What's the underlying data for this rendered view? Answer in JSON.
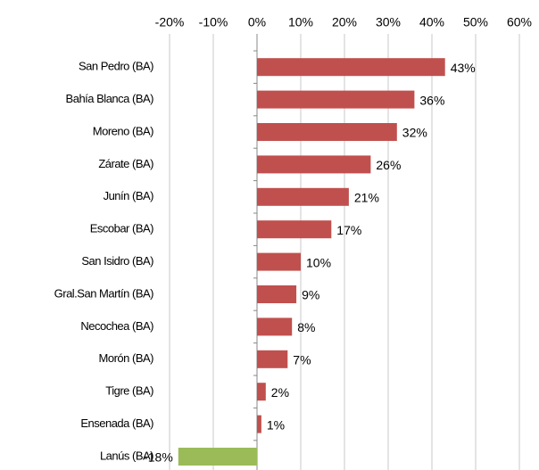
{
  "chart_data": {
    "type": "barh",
    "categories": [
      "San Pedro (BA)",
      "Bahía Blanca (BA)",
      "Moreno (BA)",
      "Zárate (BA)",
      "Junín (BA)",
      "Escobar (BA)",
      "San Isidro  (BA)",
      "Gral.San Martín (BA)",
      "Necochea (BA)",
      "Morón (BA)",
      "Tigre (BA)",
      "Ensenada (BA)",
      "Lanús (BA)"
    ],
    "values": [
      43,
      36,
      32,
      26,
      21,
      17,
      10,
      9,
      8,
      7,
      2,
      1,
      -18
    ],
    "value_labels": [
      "43%",
      "36%",
      "32%",
      "26%",
      "21%",
      "17%",
      "10%",
      "9%",
      "8%",
      "7%",
      "2%",
      "1%",
      "-18%"
    ],
    "colors": [
      "#c0504d",
      "#c0504d",
      "#c0504d",
      "#c0504d",
      "#c0504d",
      "#c0504d",
      "#c0504d",
      "#c0504d",
      "#c0504d",
      "#c0504d",
      "#c0504d",
      "#c0504d",
      "#9bbb59"
    ],
    "xlim": [
      -20,
      60
    ],
    "xticks": [
      {
        "value": -20,
        "label": "-20%"
      },
      {
        "value": -10,
        "label": "-10%"
      },
      {
        "value": 0,
        "label": "0%"
      },
      {
        "value": 10,
        "label": "10%"
      },
      {
        "value": 20,
        "label": "20%"
      },
      {
        "value": 30,
        "label": "30%"
      },
      {
        "value": 40,
        "label": "40%"
      },
      {
        "value": 50,
        "label": "50%"
      },
      {
        "value": 60,
        "label": "60%"
      }
    ],
    "grid": true
  }
}
